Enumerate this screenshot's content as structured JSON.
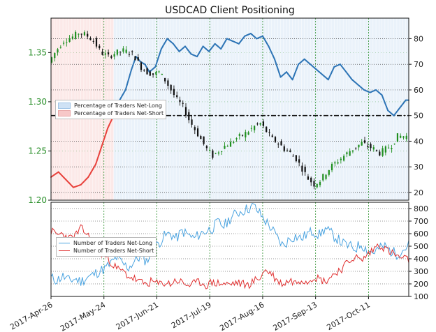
{
  "chart_data": [
    {
      "type": "line",
      "title": "USDCAD Client Positioning",
      "x_ticks": [
        "2017-Apr-26",
        "2017-May-24",
        "2017-Jun-21",
        "2017-Jul-19",
        "2017-Aug-16",
        "2017-Sep-13",
        "2017-Oct-11"
      ],
      "ylim_price": [
        1.2,
        1.385
      ],
      "ylim_pct": [
        17,
        88
      ],
      "y_ticks_price": [
        "1.35",
        "1.30",
        "1.25",
        "1.20"
      ],
      "y_ticks_pct": [
        "80",
        "70",
        "60",
        "50",
        "40",
        "30",
        "20"
      ],
      "reference_line_pct": 50,
      "legend": [
        "Percentage of Traders Net-Long",
        "Percentage of Traders Net-Short"
      ],
      "colors": {
        "long": "#2e75b6",
        "short": "#e8423c",
        "long_fill": "#cfe2f5",
        "short_fill": "#f7c8c8",
        "candle_up": "#1f8f1f",
        "candle_down": "#111111",
        "price_axis": "#2a8f2a"
      },
      "series": [
        {
          "name": "USDCAD",
          "kind": "price",
          "keys": [
            [
              0,
              1.34
            ],
            [
              5,
              1.352
            ],
            [
              10,
              1.362
            ],
            [
              15,
              1.365
            ],
            [
              20,
              1.37
            ],
            [
              25,
              1.368
            ],
            [
              30,
              1.362
            ],
            [
              35,
              1.35
            ],
            [
              40,
              1.346
            ],
            [
              45,
              1.35
            ],
            [
              50,
              1.352
            ],
            [
              55,
              1.35
            ],
            [
              58,
              1.345
            ],
            [
              62,
              1.335
            ],
            [
              66,
              1.33
            ],
            [
              70,
              1.328
            ],
            [
              74,
              1.33
            ],
            [
              78,
              1.322
            ],
            [
              82,
              1.312
            ],
            [
              86,
              1.302
            ],
            [
              90,
              1.295
            ],
            [
              94,
              1.282
            ],
            [
              98,
              1.272
            ],
            [
              102,
              1.262
            ],
            [
              106,
              1.252
            ],
            [
              110,
              1.245
            ],
            [
              114,
              1.25
            ],
            [
              118,
              1.255
            ],
            [
              122,
              1.258
            ],
            [
              126,
              1.263
            ],
            [
              130,
              1.266
            ],
            [
              134,
              1.27
            ],
            [
              138,
              1.275
            ],
            [
              142,
              1.278
            ],
            [
              146,
              1.27
            ],
            [
              150,
              1.262
            ],
            [
              154,
              1.258
            ],
            [
              158,
              1.252
            ],
            [
              162,
              1.248
            ],
            [
              166,
              1.242
            ],
            [
              170,
              1.232
            ],
            [
              174,
              1.222
            ],
            [
              178,
              1.216
            ],
            [
              182,
              1.22
            ],
            [
              186,
              1.228
            ],
            [
              190,
              1.235
            ],
            [
              194,
              1.24
            ],
            [
              198,
              1.245
            ],
            [
              202,
              1.25
            ],
            [
              206,
              1.254
            ],
            [
              210,
              1.258
            ],
            [
              214,
              1.255
            ],
            [
              218,
              1.252
            ],
            [
              222,
              1.248
            ],
            [
              226,
              1.252
            ],
            [
              230,
              1.256
            ],
            [
              234,
              1.265
            ]
          ]
        },
        {
          "name": "Percentage of Traders Net-Long",
          "kind": "pct",
          "keys": [
            [
              0,
              26
            ],
            [
              5,
              28
            ],
            [
              10,
              25
            ],
            [
              15,
              22
            ],
            [
              20,
              23
            ],
            [
              25,
              26
            ],
            [
              30,
              31
            ],
            [
              34,
              38
            ],
            [
              38,
              45
            ],
            [
              42,
              50
            ],
            [
              46,
              56
            ],
            [
              50,
              60
            ],
            [
              54,
              68
            ],
            [
              57,
              73
            ],
            [
              60,
              71
            ],
            [
              63,
              70
            ],
            [
              66,
              67
            ],
            [
              70,
              69
            ],
            [
              74,
              76
            ],
            [
              78,
              80
            ],
            [
              82,
              78
            ],
            [
              86,
              75
            ],
            [
              90,
              77
            ],
            [
              94,
              74
            ],
            [
              98,
              73
            ],
            [
              102,
              77
            ],
            [
              106,
              75
            ],
            [
              110,
              78
            ],
            [
              114,
              76
            ],
            [
              118,
              80
            ],
            [
              122,
              79
            ],
            [
              126,
              78
            ],
            [
              130,
              81
            ],
            [
              134,
              82
            ],
            [
              138,
              80
            ],
            [
              142,
              81
            ],
            [
              146,
              77
            ],
            [
              150,
              72
            ],
            [
              154,
              65
            ],
            [
              158,
              67
            ],
            [
              162,
              64
            ],
            [
              166,
              70
            ],
            [
              170,
              72
            ],
            [
              174,
              70
            ],
            [
              178,
              68
            ],
            [
              182,
              66
            ],
            [
              186,
              64
            ],
            [
              190,
              69
            ],
            [
              194,
              70
            ],
            [
              198,
              67
            ],
            [
              202,
              64
            ],
            [
              206,
              62
            ],
            [
              210,
              60
            ],
            [
              214,
              59
            ],
            [
              218,
              60
            ],
            [
              222,
              58
            ],
            [
              226,
              52
            ],
            [
              230,
              50
            ],
            [
              234,
              53
            ],
            [
              238,
              56
            ]
          ]
        },
        {
          "name": "Number of Traders Net-Long",
          "kind": "count",
          "keys": [
            [
              0,
              245
            ],
            [
              4,
              230
            ],
            [
              8,
              260
            ],
            [
              12,
              225
            ],
            [
              16,
              240
            ],
            [
              20,
              220
            ],
            [
              24,
              250
            ],
            [
              28,
              270
            ],
            [
              32,
              300
            ],
            [
              36,
              320
            ],
            [
              40,
              360
            ],
            [
              44,
              410
            ],
            [
              48,
              360
            ],
            [
              52,
              330
            ],
            [
              56,
              380
            ],
            [
              60,
              420
            ],
            [
              64,
              380
            ],
            [
              68,
              460
            ],
            [
              72,
              520
            ],
            [
              76,
              580
            ],
            [
              80,
              600
            ],
            [
              84,
              560
            ],
            [
              88,
              620
            ],
            [
              92,
              590
            ],
            [
              96,
              560
            ],
            [
              100,
              600
            ],
            [
              104,
              620
            ],
            [
              108,
              640
            ],
            [
              112,
              690
            ],
            [
              116,
              660
            ],
            [
              120,
              720
            ],
            [
              124,
              760
            ],
            [
              128,
              780
            ],
            [
              132,
              800
            ],
            [
              136,
              820
            ],
            [
              140,
              760
            ],
            [
              144,
              700
            ],
            [
              148,
              640
            ],
            [
              152,
              560
            ],
            [
              156,
              500
            ],
            [
              160,
              560
            ],
            [
              164,
              580
            ],
            [
              168,
              560
            ],
            [
              172,
              600
            ],
            [
              176,
              620
            ],
            [
              180,
              590
            ],
            [
              184,
              640
            ],
            [
              188,
              600
            ],
            [
              192,
              560
            ],
            [
              196,
              520
            ],
            [
              200,
              500
            ],
            [
              204,
              480
            ],
            [
              208,
              520
            ],
            [
              212,
              470
            ],
            [
              216,
              450
            ],
            [
              220,
              480
            ],
            [
              224,
              500
            ],
            [
              228,
              460
            ],
            [
              232,
              440
            ],
            [
              236,
              470
            ],
            [
              240,
              510
            ]
          ]
        },
        {
          "name": "Number of Traders Net-Short",
          "kind": "count",
          "keys": [
            [
              0,
              620
            ],
            [
              4,
              590
            ],
            [
              8,
              600
            ],
            [
              12,
              560
            ],
            [
              16,
              580
            ],
            [
              20,
              640
            ],
            [
              24,
              600
            ],
            [
              28,
              520
            ],
            [
              32,
              460
            ],
            [
              36,
              420
            ],
            [
              40,
              380
            ],
            [
              44,
              320
            ],
            [
              48,
              300
            ],
            [
              52,
              260
            ],
            [
              56,
              240
            ],
            [
              60,
              210
            ],
            [
              64,
              200
            ],
            [
              68,
              220
            ],
            [
              72,
              195
            ],
            [
              76,
              210
            ],
            [
              80,
              200
            ],
            [
              84,
              230
            ],
            [
              88,
              210
            ],
            [
              92,
              190
            ],
            [
              96,
              200
            ],
            [
              100,
              215
            ],
            [
              104,
              190
            ],
            [
              108,
              210
            ],
            [
              112,
              205
            ],
            [
              116,
              200
            ],
            [
              120,
              195
            ],
            [
              124,
              210
            ],
            [
              128,
              200
            ],
            [
              132,
              190
            ],
            [
              136,
              220
            ],
            [
              140,
              250
            ],
            [
              144,
              310
            ],
            [
              148,
              280
            ],
            [
              152,
              220
            ],
            [
              156,
              200
            ],
            [
              160,
              230
            ],
            [
              164,
              210
            ],
            [
              168,
              240
            ],
            [
              172,
              220
            ],
            [
              176,
              260
            ],
            [
              180,
              240
            ],
            [
              184,
              220
            ],
            [
              188,
              260
            ],
            [
              192,
              300
            ],
            [
              196,
              330
            ],
            [
              200,
              380
            ],
            [
              204,
              420
            ],
            [
              208,
              380
            ],
            [
              212,
              430
            ],
            [
              216,
              470
            ],
            [
              220,
              520
            ],
            [
              224,
              480
            ],
            [
              228,
              450
            ],
            [
              232,
              420
            ],
            [
              236,
              400
            ],
            [
              240,
              390
            ]
          ]
        }
      ]
    }
  ],
  "legend_top": [
    "Percentage of Traders Net-Long",
    "Percentage of Traders Net-Short"
  ],
  "legend_bottom": [
    "Number of Traders Net-Long",
    "Number of Traders Net-Short"
  ],
  "y_ticks_count": [
    "800",
    "700",
    "600",
    "500",
    "400",
    "300",
    "200",
    "100"
  ],
  "ylim_count": [
    100,
    850
  ]
}
